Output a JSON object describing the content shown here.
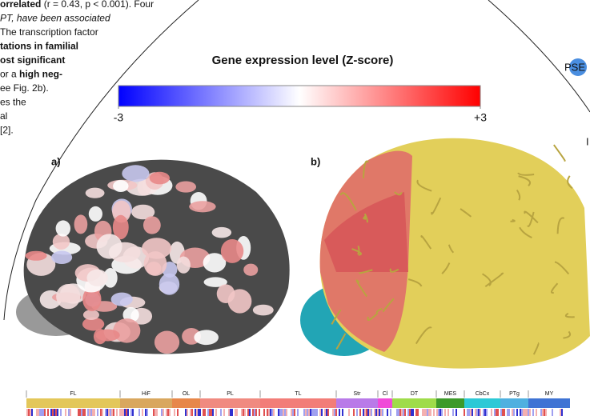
{
  "text_lines": [
    [
      {
        "text": "orrelated",
        "bold": true
      },
      {
        "text": " (r = 0.43, p < 0.001). Four",
        "bold": false
      }
    ],
    [
      {
        "text": "PT, have been associated",
        "bold": false
      }
    ],
    [
      {
        "text": "The transcription factor",
        "bold": false
      }
    ],
    [
      {
        "text": "tations in familial",
        "bold": true
      }
    ],
    [
      {
        "text": "ost significant",
        "bold": true
      }
    ],
    [
      {
        "text": "or a ",
        "bold": false
      },
      {
        "text": "high neg-",
        "bold": true
      }
    ],
    [
      {
        "text": "ee Fig. 2b).",
        "bold": false
      }
    ],
    [
      {
        "text": "es the",
        "bold": false
      }
    ],
    [
      {
        "text": "al",
        "bold": false
      }
    ],
    [
      {
        "text": "[2].",
        "bold": false
      }
    ]
  ],
  "colorbar": {
    "title": "Gene expression level (Z-score)",
    "lim": [
      -3,
      3
    ],
    "ticks": [
      -3,
      {
        "value": 3,
        "label": "+3"
      }
    ]
  },
  "panels": [
    "a)",
    "b)"
  ],
  "side_labels": [
    "PSE",
    "I"
  ],
  "regions": [
    {
      "label": "FL",
      "color": "#e3c75a"
    },
    {
      "label": "HiF",
      "color": "#d9a75e"
    },
    {
      "label": "OL",
      "color": "#e7874a"
    },
    {
      "label": "PL",
      "color": "#f08a80"
    },
    {
      "label": "TL",
      "color": "#f27d78"
    },
    {
      "label": "Str",
      "color": "#b97ae8"
    },
    {
      "label": "Cl",
      "color": "#f04ad8"
    },
    {
      "label": "DT",
      "color": "#9fdc4a"
    },
    {
      "label": "MES",
      "color": "#3d9a2a"
    },
    {
      "label": "CbCx",
      "color": "#2dc9d6"
    },
    {
      "label": "PTg",
      "color": "#4fb0e0"
    },
    {
      "label": "MY",
      "color": "#3f73d4"
    }
  ]
}
